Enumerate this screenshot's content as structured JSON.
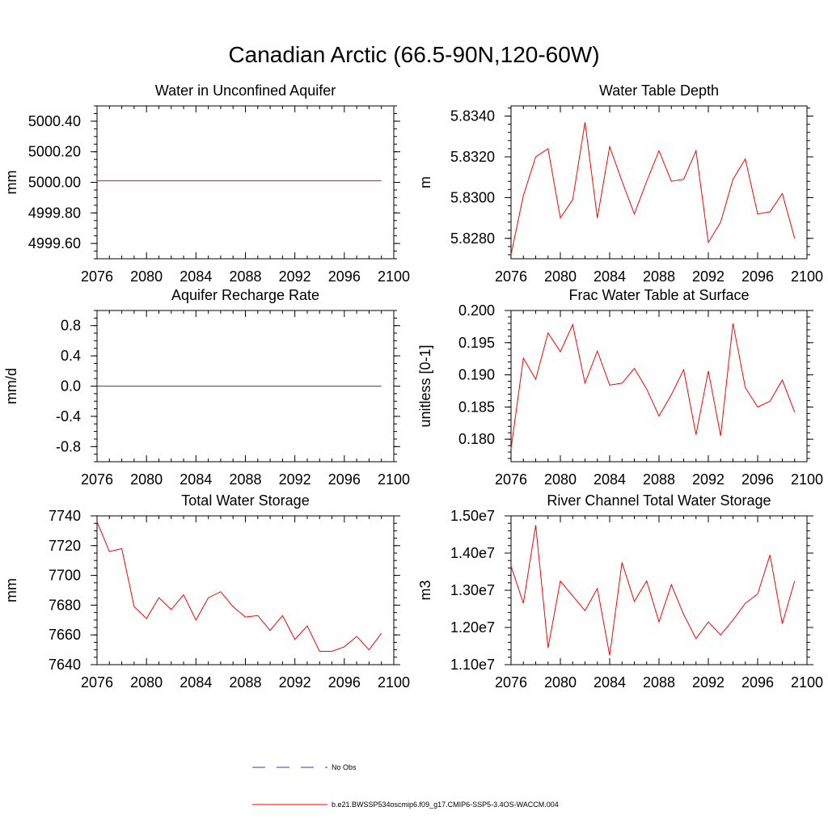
{
  "title": "Canadian Arctic (66.5-90N,120-60W)",
  "legend": [
    {
      "label": "No Obs",
      "color": "#3333cc",
      "style": "dashed"
    },
    {
      "label": "b.e21.BWSSP534oscmip6.f09_g17.CMIP6-SSP5-3.4OS-WACCM.004",
      "color": "#ff0000",
      "style": "solid"
    }
  ],
  "chart_data": [
    {
      "type": "line",
      "title": "Water in Unconfined Aquifer",
      "ylabel": "mm",
      "xlim": [
        2076,
        2100
      ],
      "ylim": [
        4999.5,
        5000.5
      ],
      "xticks": [
        2076,
        2080,
        2084,
        2088,
        2092,
        2096,
        2100
      ],
      "yticks": [
        4999.6,
        4999.8,
        5000.0,
        5000.2,
        5000.4
      ],
      "ytick_labels": [
        "4999.60",
        "4999.80",
        "5000.00",
        "5000.20",
        "5000.40"
      ],
      "yminor_step": 0.05,
      "series": [
        {
          "color": "#ff0000",
          "x": [
            2076,
            2077,
            2078,
            2079,
            2080,
            2081,
            2082,
            2083,
            2084,
            2085,
            2086,
            2087,
            2088,
            2089,
            2090,
            2091,
            2092,
            2093,
            2094,
            2095,
            2096,
            2097,
            2098,
            2099
          ],
          "values": [
            5000.01,
            5000.01,
            5000.01,
            5000.01,
            5000.01,
            5000.01,
            5000.01,
            5000.01,
            5000.01,
            5000.01,
            5000.01,
            5000.01,
            5000.01,
            5000.01,
            5000.01,
            5000.01,
            5000.01,
            5000.01,
            5000.01,
            5000.01,
            5000.01,
            5000.01,
            5000.01,
            5000.01
          ]
        }
      ]
    },
    {
      "type": "line",
      "title": "Water Table Depth",
      "ylabel": "m",
      "xlim": [
        2076,
        2100
      ],
      "ylim": [
        5.827,
        5.8345
      ],
      "xticks": [
        2076,
        2080,
        2084,
        2088,
        2092,
        2096,
        2100
      ],
      "yticks": [
        5.828,
        5.83,
        5.832,
        5.834
      ],
      "ytick_labels": [
        "5.8280",
        "5.8300",
        "5.8320",
        "5.8340"
      ],
      "yminor_step": 0.0004,
      "series": [
        {
          "color": "#ff0000",
          "x": [
            2076,
            2077,
            2078,
            2079,
            2080,
            2081,
            2082,
            2083,
            2084,
            2085,
            2086,
            2087,
            2088,
            2089,
            2090,
            2091,
            2092,
            2093,
            2094,
            2095,
            2096,
            2097,
            2098,
            2099
          ],
          "values": [
            5.8272,
            5.8301,
            5.832,
            5.8324,
            5.829,
            5.8299,
            5.8337,
            5.829,
            5.8325,
            5.8308,
            5.8292,
            5.8308,
            5.8323,
            5.8308,
            5.8309,
            5.8323,
            5.8278,
            5.8288,
            5.8309,
            5.8319,
            5.8292,
            5.8293,
            5.8302,
            5.828
          ]
        }
      ]
    },
    {
      "type": "line",
      "title": "Aquifer Recharge Rate",
      "ylabel": "mm/d",
      "xlim": [
        2076,
        2100
      ],
      "ylim": [
        -1.0,
        1.0
      ],
      "xticks": [
        2076,
        2080,
        2084,
        2088,
        2092,
        2096,
        2100
      ],
      "yticks": [
        -0.8,
        -0.4,
        0.0,
        0.4,
        0.8
      ],
      "ytick_labels": [
        "-0.8",
        "-0.4",
        "0.0",
        "0.4",
        "0.8"
      ],
      "yminor_step": 0.1,
      "series": [
        {
          "color": "#ff0000",
          "x": [
            2076,
            2077,
            2078,
            2079,
            2080,
            2081,
            2082,
            2083,
            2084,
            2085,
            2086,
            2087,
            2088,
            2089,
            2090,
            2091,
            2092,
            2093,
            2094,
            2095,
            2096,
            2097,
            2098,
            2099
          ],
          "values": [
            0,
            0,
            0,
            0,
            0,
            0,
            0,
            0,
            0,
            0,
            0,
            0,
            0,
            0,
            0,
            0,
            0,
            0,
            0,
            0,
            0,
            0,
            0,
            0
          ]
        }
      ]
    },
    {
      "type": "line",
      "title": "Frac Water Table at Surface",
      "ylabel": "unitless [0-1]",
      "xlim": [
        2076,
        2100
      ],
      "ylim": [
        0.1765,
        0.2
      ],
      "xticks": [
        2076,
        2080,
        2084,
        2088,
        2092,
        2096,
        2100
      ],
      "yticks": [
        0.18,
        0.185,
        0.19,
        0.195,
        0.2
      ],
      "ytick_labels": [
        "0.180",
        "0.185",
        "0.190",
        "0.195",
        "0.200"
      ],
      "yminor_step": 0.001,
      "series": [
        {
          "color": "#ff0000",
          "x": [
            2076,
            2077,
            2078,
            2079,
            2080,
            2081,
            2082,
            2083,
            2084,
            2085,
            2086,
            2087,
            2088,
            2089,
            2090,
            2091,
            2092,
            2093,
            2094,
            2095,
            2096,
            2097,
            2098,
            2099
          ],
          "values": [
            0.1785,
            0.1926,
            0.1893,
            0.1965,
            0.1936,
            0.1978,
            0.1887,
            0.1937,
            0.1884,
            0.1887,
            0.191,
            0.1878,
            0.1836,
            0.1869,
            0.1908,
            0.1807,
            0.1906,
            0.1805,
            0.198,
            0.188,
            0.185,
            0.1859,
            0.1892,
            0.1842
          ]
        }
      ]
    },
    {
      "type": "line",
      "title": "Total Water Storage",
      "ylabel": "mm",
      "xlim": [
        2076,
        2100
      ],
      "ylim": [
        7640,
        7740
      ],
      "xticks": [
        2076,
        2080,
        2084,
        2088,
        2092,
        2096,
        2100
      ],
      "yticks": [
        7640,
        7660,
        7680,
        7700,
        7720,
        7740
      ],
      "ytick_labels": [
        "7640",
        "7660",
        "7680",
        "7700",
        "7720",
        "7740"
      ],
      "yminor_step": 5,
      "series": [
        {
          "color": "#ff0000",
          "x": [
            2076,
            2077,
            2078,
            2079,
            2080,
            2081,
            2082,
            2083,
            2084,
            2085,
            2086,
            2087,
            2088,
            2089,
            2090,
            2091,
            2092,
            2093,
            2094,
            2095,
            2096,
            2097,
            2098,
            2099
          ],
          "values": [
            7736,
            7716,
            7718,
            7679,
            7671,
            7685,
            7677,
            7687,
            7670,
            7685,
            7689,
            7679,
            7672,
            7673,
            7663,
            7673,
            7657,
            7666,
            7649,
            7649,
            7652,
            7659,
            7650,
            7661
          ]
        }
      ]
    },
    {
      "type": "line",
      "title": "River Channel Total Water Storage",
      "ylabel": "m3",
      "xlim": [
        2076,
        2100
      ],
      "ylim": [
        11000000,
        15000000
      ],
      "xticks": [
        2076,
        2080,
        2084,
        2088,
        2092,
        2096,
        2100
      ],
      "yticks": [
        11000000,
        12000000,
        13000000,
        14000000,
        15000000
      ],
      "ytick_labels": [
        "1.10e7",
        "1.20e7",
        "1.30e7",
        "1.40e7",
        "1.50e7"
      ],
      "yminor_step": 200000,
      "series": [
        {
          "color": "#ff0000",
          "x": [
            2076,
            2077,
            2078,
            2079,
            2080,
            2081,
            2082,
            2083,
            2084,
            2085,
            2086,
            2087,
            2088,
            2089,
            2090,
            2091,
            2092,
            2093,
            2094,
            2095,
            2096,
            2097,
            2098,
            2099
          ],
          "values": [
            13650000,
            12650000,
            14750000,
            11450000,
            13250000,
            12850000,
            12450000,
            13050000,
            11250000,
            13750000,
            12700000,
            13250000,
            12150000,
            13150000,
            12350000,
            11700000,
            12150000,
            11800000,
            12200000,
            12650000,
            12900000,
            13950000,
            12100000,
            13250000
          ]
        }
      ]
    }
  ]
}
